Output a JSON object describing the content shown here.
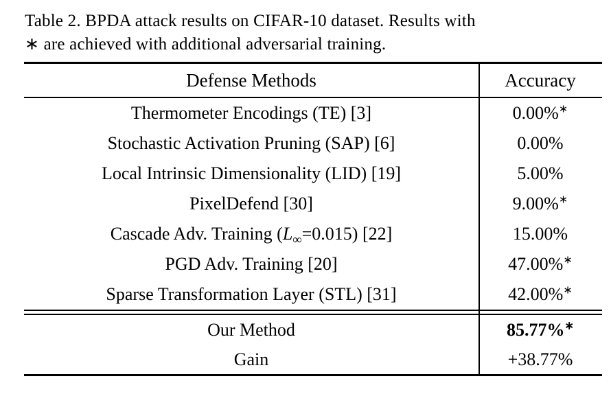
{
  "caption": {
    "line1": "Table 2.  BPDA attack results on CIFAR-10 dataset. Results with",
    "line2": "∗ are achieved with additional adversarial training."
  },
  "table": {
    "header": {
      "method": "Defense Methods",
      "accuracy": "Accuracy"
    },
    "rows": [
      {
        "method": "Thermometer Encodings (TE) [3]",
        "accuracy": "0.00%",
        "sup": "∗"
      },
      {
        "method": "Stochastic Activation Pruning (SAP) [6]",
        "accuracy": "0.00%",
        "sup": ""
      },
      {
        "method": "Local Intrinsic Dimensionality (LID) [19]",
        "accuracy": "5.00%",
        "sup": ""
      },
      {
        "method": "PixelDefend [30]",
        "accuracy": "9.00%",
        "sup": "∗"
      },
      {
        "method_parts": {
          "prefix": "Cascade Adv. Training (",
          "var": "L",
          "sub": "∞",
          "suffix": "=0.015) [22]"
        },
        "accuracy": "15.00%",
        "sup": ""
      },
      {
        "method": "PGD Adv. Training [20]",
        "accuracy": "47.00%",
        "sup": "∗"
      },
      {
        "method": "Sparse Transformation Layer (STL) [31]",
        "accuracy": "42.00%",
        "sup": "∗"
      }
    ],
    "summary": [
      {
        "method": "Our Method",
        "accuracy": "85.77%",
        "sup": "∗"
      },
      {
        "method": "Gain",
        "accuracy": "+38.77%",
        "sup": ""
      }
    ]
  }
}
